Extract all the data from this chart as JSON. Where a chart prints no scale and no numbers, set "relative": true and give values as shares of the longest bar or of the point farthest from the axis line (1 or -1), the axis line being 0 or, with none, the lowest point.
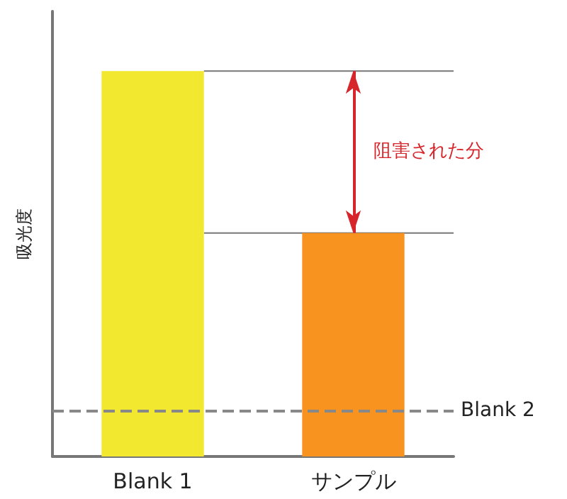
{
  "chart_data": {
    "type": "bar",
    "relative": true,
    "ylabel": "吸光度",
    "categories": [
      "Blank 1",
      "サンプル"
    ],
    "values": [
      1,
      0.58
    ],
    "colors": [
      "#f2e830",
      "#f7931e"
    ],
    "ref_lines": [
      {
        "axis": "y",
        "value": 0.12,
        "label": "Blank 2",
        "color": "#888888",
        "line_style": "dashed"
      },
      {
        "axis": "y",
        "value": 1,
        "label": null,
        "color": "#777777",
        "line_style": "solid"
      },
      {
        "axis": "y",
        "value": 0.58,
        "label": null,
        "color": "#777777",
        "line_style": "solid"
      }
    ],
    "annotations": [
      "阻害された分"
    ],
    "grid": false
  }
}
